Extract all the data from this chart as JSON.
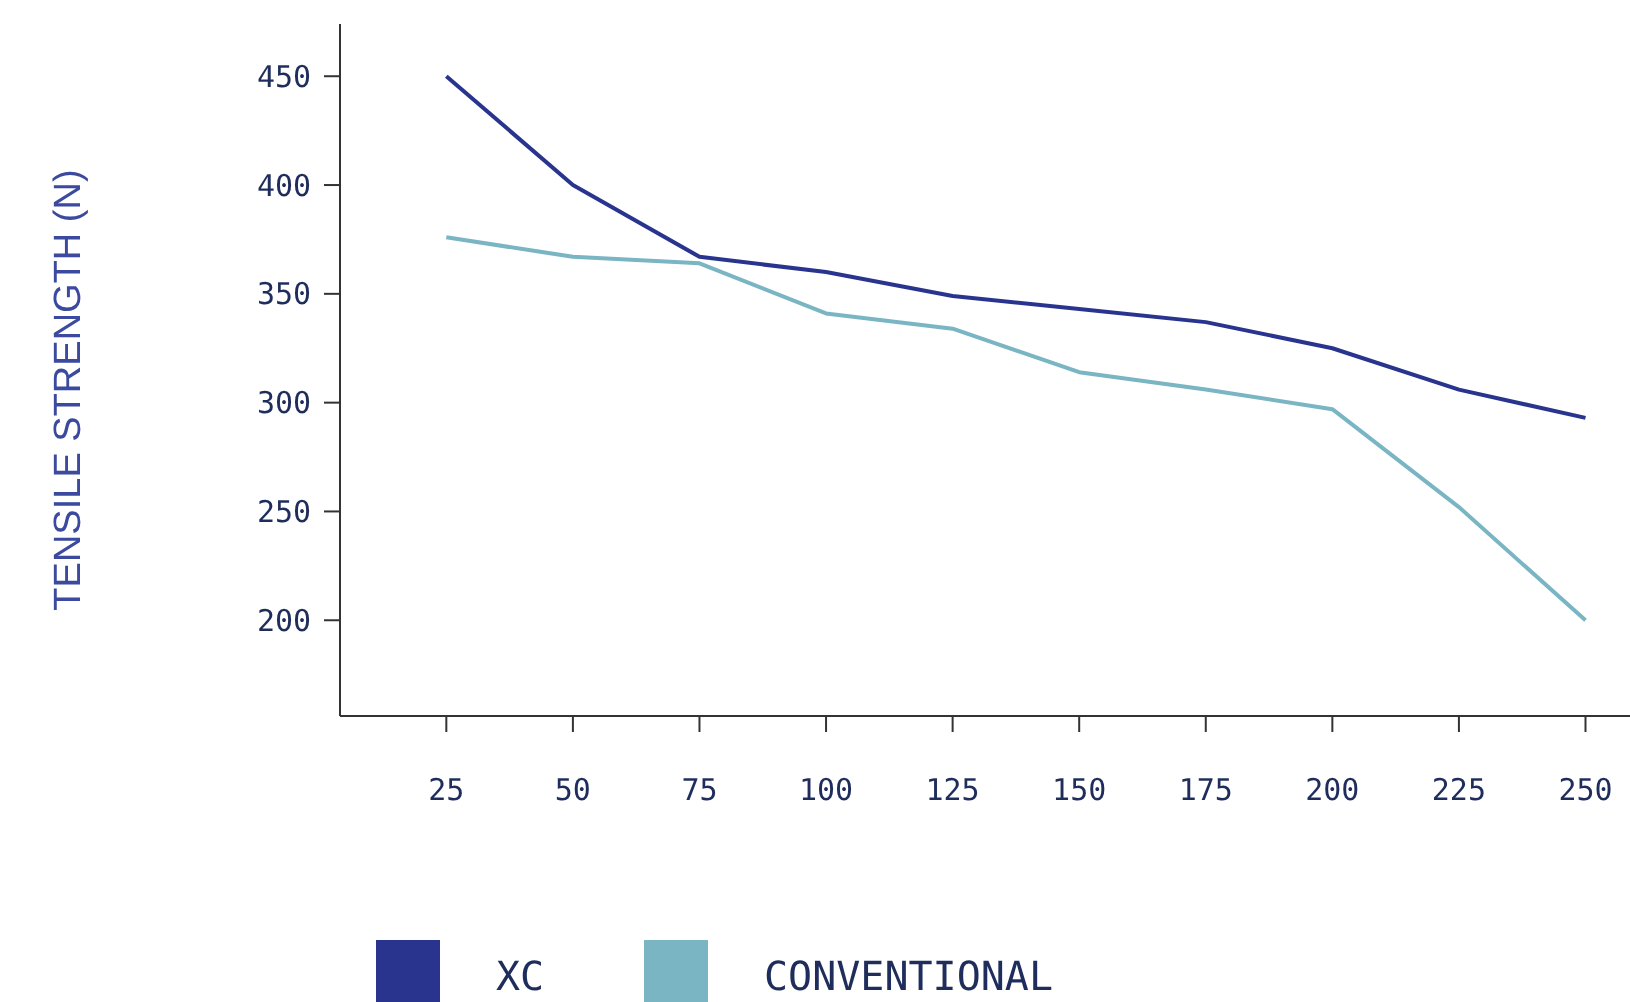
{
  "chart_data": {
    "type": "line",
    "ylabel": "TENSILE STRENGTH (N)",
    "x": [
      25,
      50,
      75,
      100,
      125,
      150,
      175,
      200,
      225,
      250
    ],
    "xlim": [
      4,
      258
    ],
    "xticks": [
      25,
      50,
      75,
      100,
      125,
      150,
      175,
      200,
      225,
      250
    ],
    "ylim": [
      156,
      474
    ],
    "yticks": [
      200,
      250,
      300,
      350,
      400,
      450
    ],
    "series": [
      {
        "name": "XC",
        "color": "#29348e",
        "values": [
          450,
          400,
          367,
          360,
          349,
          343,
          337,
          325,
          306,
          293
        ]
      },
      {
        "name": "CONVENTIONAL",
        "color": "#7ab5c4",
        "values": [
          376,
          367,
          364,
          341,
          334,
          314,
          306,
          297,
          252,
          200
        ]
      }
    ],
    "legend": "bottom",
    "grid": false,
    "marker": "none",
    "line_style": "solid"
  }
}
